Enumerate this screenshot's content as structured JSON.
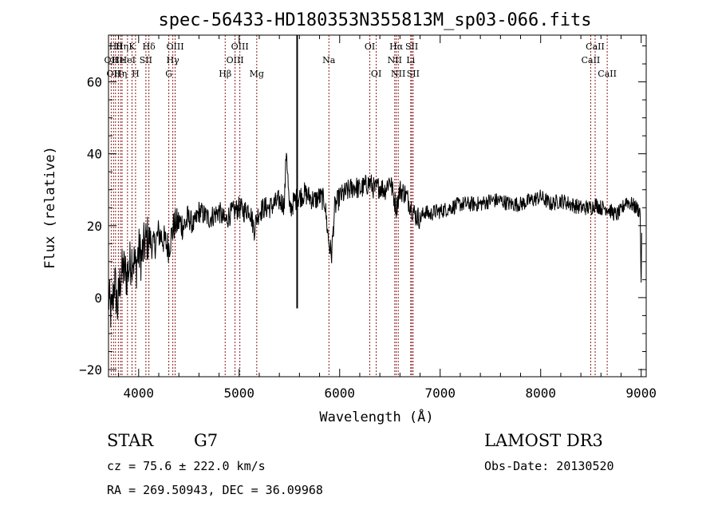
{
  "chart_data": {
    "type": "line",
    "title": "spec-56433-HD180353N355813M_sp03-066.fits",
    "xlabel": "Wavelength (Å)",
    "ylabel": "Flux (relative)",
    "xlim": [
      3700,
      9050
    ],
    "ylim": [
      -22,
      73
    ],
    "x_ticks": [
      4000,
      5000,
      6000,
      7000,
      8000,
      9000
    ],
    "x_tick_labels": [
      "4000",
      "5000",
      "6000",
      "7000",
      "8000",
      "9000"
    ],
    "y_ticks": [
      -20,
      0,
      20,
      40,
      60
    ],
    "y_tick_labels": [
      "−20",
      "0",
      "20",
      "40",
      "60"
    ],
    "series": [
      {
        "name": "flux",
        "x": [
          3700,
          3730,
          3760,
          3790,
          3820,
          3850,
          3880,
          3910,
          3940,
          3970,
          4000,
          4030,
          4060,
          4100,
          4150,
          4200,
          4250,
          4300,
          4350,
          4400,
          4450,
          4500,
          4550,
          4600,
          4650,
          4700,
          4750,
          4800,
          4861,
          4900,
          4950,
          5000,
          5050,
          5100,
          5150,
          5175,
          5200,
          5250,
          5300,
          5350,
          5400,
          5450,
          5470,
          5500,
          5550,
          5600,
          5650,
          5700,
          5750,
          5800,
          5850,
          5893,
          5920,
          5950,
          6000,
          6050,
          6100,
          6150,
          6200,
          6250,
          6300,
          6350,
          6400,
          6450,
          6500,
          6563,
          6600,
          6650,
          6700,
          6750,
          6800,
          6850,
          6900,
          6950,
          7000,
          7100,
          7200,
          7300,
          7400,
          7500,
          7600,
          7700,
          7800,
          7900,
          8000,
          8100,
          8200,
          8300,
          8400,
          8498,
          8542,
          8600,
          8662,
          8700,
          8750,
          8800,
          8850,
          8900,
          8950,
          8990,
          9000,
          9005
        ],
        "y": [
          0,
          -5,
          5,
          -3,
          6,
          8,
          6,
          9,
          12,
          8,
          13,
          11,
          15,
          17,
          14,
          18,
          16,
          14,
          20,
          21,
          20,
          22,
          20,
          24,
          23,
          22,
          23,
          24,
          21,
          23,
          24,
          25,
          24,
          25,
          19,
          22,
          24,
          25,
          25,
          26,
          27,
          26,
          42,
          24,
          27,
          28,
          29,
          28,
          27,
          28,
          27,
          15,
          12,
          25,
          28,
          29,
          30,
          31,
          30,
          31,
          32,
          30,
          31,
          30,
          33,
          25,
          30,
          29,
          26,
          23,
          22,
          24,
          23,
          24,
          24,
          25,
          26,
          26,
          26,
          27,
          27,
          26,
          26,
          27,
          28,
          26,
          27,
          26,
          25,
          25,
          26,
          25,
          25,
          24,
          23,
          24,
          27,
          26,
          25,
          24,
          2,
          18
        ]
      }
    ],
    "spikes": [
      {
        "x": 5577,
        "y_top": 73,
        "y_bottom": -3
      }
    ],
    "line_markers": [
      {
        "x": 3727,
        "label": "OII",
        "row": 2
      },
      {
        "x": 3750,
        "label": "OII",
        "row": 3
      },
      {
        "x": 3770,
        "label": "Hθ",
        "row": 1
      },
      {
        "x": 3798,
        "label": "He",
        "row": 2
      },
      {
        "x": 3820,
        "label": "Hη",
        "row": 3
      },
      {
        "x": 3835,
        "label": "Hη",
        "row": 1
      },
      {
        "x": 3889,
        "label": "HeI",
        "row": 2
      },
      {
        "x": 3934,
        "label": "K",
        "row": 1
      },
      {
        "x": 3969,
        "label": "H",
        "row": 3
      },
      {
        "x": 4072,
        "label": "SII",
        "row": 2
      },
      {
        "x": 4102,
        "label": "Hδ",
        "row": 1
      },
      {
        "x": 4300,
        "label": "G",
        "row": 3
      },
      {
        "x": 4340,
        "label": "Hγ",
        "row": 2
      },
      {
        "x": 4363,
        "label": "OIII",
        "row": 1
      },
      {
        "x": 4861,
        "label": "Hβ",
        "row": 3
      },
      {
        "x": 4959,
        "label": "OIII",
        "row": 2
      },
      {
        "x": 5007,
        "label": "OIII",
        "row": 1
      },
      {
        "x": 5175,
        "label": "Mg",
        "row": 3
      },
      {
        "x": 5893,
        "label": "Na",
        "row": 2
      },
      {
        "x": 6300,
        "label": "OI",
        "row": 1
      },
      {
        "x": 6364,
        "label": "OI",
        "row": 3
      },
      {
        "x": 6548,
        "label": "NII",
        "row": 2
      },
      {
        "x": 6563,
        "label": "Hα",
        "row": 1
      },
      {
        "x": 6583,
        "label": "NII",
        "row": 3
      },
      {
        "x": 6707,
        "label": "Li",
        "row": 2
      },
      {
        "x": 6717,
        "label": "SII",
        "row": 1
      },
      {
        "x": 6731,
        "label": "SII",
        "row": 3
      },
      {
        "x": 8498,
        "label": "CaII",
        "row": 2
      },
      {
        "x": 8542,
        "label": "CaII",
        "row": 1
      },
      {
        "x": 8662,
        "label": "CaII",
        "row": 3
      }
    ]
  },
  "info": {
    "class_label": "STAR",
    "subclass": "G7",
    "survey": "LAMOST DR3",
    "redshift_line": "cz = 75.6 ± 222.0 km/s",
    "obs_date_line": "Obs-Date: 20130520",
    "coords_line": "RA = 269.50943, DEC =  36.09968"
  },
  "colors": {
    "spectrum": "#000000",
    "marker_line": "#8b1a1a",
    "axis": "#000000"
  }
}
